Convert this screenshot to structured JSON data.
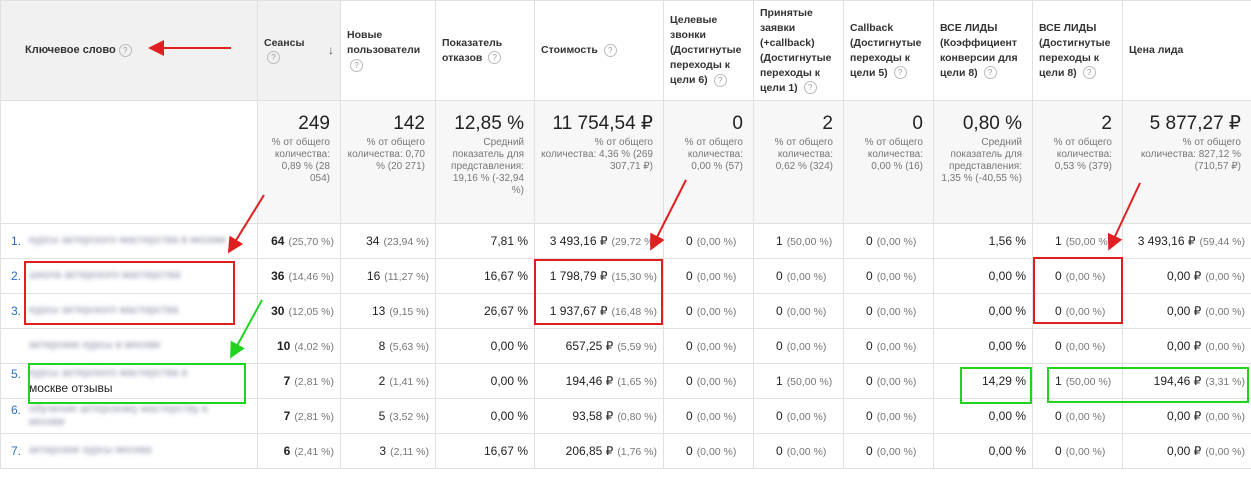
{
  "headers": {
    "keyword": "Ключевое слово",
    "sessions": "Сеансы",
    "new_users": "Новые пользователи",
    "bounce": "Показатель отказов",
    "cost": "Стоимость",
    "goal6": "Целевые звонки (Достигнутые переходы к цели 6)",
    "goal1": "Принятые заявки (+callback) (Достигнутые переходы к цели 1)",
    "goal5": "Callback (Достигнутые переходы к цели 5)",
    "conv8": "ВСЕ ЛИДЫ (Коэффициент конверсии для цели 8)",
    "goal8": "ВСЕ ЛИДЫ (Достигнутые переходы к цели 8)",
    "lead_price": "Цена лида",
    "help": "?",
    "sort_icon": "↓"
  },
  "totals": {
    "sessions": {
      "big": "249",
      "small": "% от общего количества: 0,89 % (28 054)"
    },
    "new_users": {
      "big": "142",
      "small": "% от общего количества: 0,70 % (20 271)"
    },
    "bounce": {
      "big": "12,85 %",
      "small": "Средний показатель для представления: 19,16 % (-32,94 %)"
    },
    "cost": {
      "big": "11 754,54 ₽",
      "small": "% от общего количества: 4,36 % (269 307,71 ₽)"
    },
    "goal6": {
      "big": "0",
      "small": "% от общего количества: 0,00 % (57)"
    },
    "goal1": {
      "big": "2",
      "small": "% от общего количества: 0,62 % (324)"
    },
    "goal5": {
      "big": "0",
      "small": "% от общего количества: 0,00 % (16)"
    },
    "conv8": {
      "big": "0,80 %",
      "small": "Средний показатель для представления: 1,35 % (-40,55 %)"
    },
    "goal8": {
      "big": "2",
      "small": "% от общего количества: 0,53 % (379)"
    },
    "lead_price": {
      "big": "5 877,27 ₽",
      "small": "% от общего количества: 827,12 % (710,57 ₽)"
    }
  },
  "rows": [
    {
      "idx": "1.",
      "kw": "курсы актерского мастерства в москве",
      "kw_tail": "",
      "s": "64",
      "sp": "(25,70 %)",
      "nu": "34",
      "nup": "(23,94 %)",
      "br": "7,81 %",
      "cost": "3 493,16 ₽",
      "costp": "(29,72 %)",
      "g6": "0",
      "g6p": "(0,00 %)",
      "g1": "1",
      "g1p": "(50,00 %)",
      "g5": "0",
      "g5p": "(0,00 %)",
      "cv": "1,56 %",
      "g8": "1",
      "g8p": "(50,00 %)",
      "lp": "3 493,16 ₽",
      "lpp": "(59,44 %)"
    },
    {
      "idx": "2.",
      "kw": "школа актерского мастерства",
      "kw_tail": "",
      "s": "36",
      "sp": "(14,46 %)",
      "nu": "16",
      "nup": "(11,27 %)",
      "br": "16,67 %",
      "cost": "1 798,79 ₽",
      "costp": "(15,30 %)",
      "g6": "0",
      "g6p": "(0,00 %)",
      "g1": "0",
      "g1p": "(0,00 %)",
      "g5": "0",
      "g5p": "(0,00 %)",
      "cv": "0,00 %",
      "g8": "0",
      "g8p": "(0,00 %)",
      "lp": "0,00 ₽",
      "lpp": "(0,00 %)"
    },
    {
      "idx": "3.",
      "kw": "курсы актерского мастерства",
      "kw_tail": "",
      "s": "30",
      "sp": "(12,05 %)",
      "nu": "13",
      "nup": "(9,15 %)",
      "br": "26,67 %",
      "cost": "1 937,67 ₽",
      "costp": "(16,48 %)",
      "g6": "0",
      "g6p": "(0,00 %)",
      "g1": "0",
      "g1p": "(0,00 %)",
      "g5": "0",
      "g5p": "(0,00 %)",
      "cv": "0,00 %",
      "g8": "0",
      "g8p": "(0,00 %)",
      "lp": "0,00 ₽",
      "lpp": "(0,00 %)"
    },
    {
      "idx": "",
      "kw": "актерские курсы в москве",
      "kw_tail": "",
      "s": "10",
      "sp": "(4,02 %)",
      "nu": "8",
      "nup": "(5,63 %)",
      "br": "0,00 %",
      "cost": "657,25 ₽",
      "costp": "(5,59 %)",
      "g6": "0",
      "g6p": "(0,00 %)",
      "g1": "0",
      "g1p": "(0,00 %)",
      "g5": "0",
      "g5p": "(0,00 %)",
      "cv": "0,00 %",
      "g8": "0",
      "g8p": "(0,00 %)",
      "lp": "0,00 ₽",
      "lpp": "(0,00 %)"
    },
    {
      "idx": "5.",
      "kw": "курсы актерского мастерства в",
      "kw_tail": "москве отзывы",
      "s": "7",
      "sp": "(2,81 %)",
      "nu": "2",
      "nup": "(1,41 %)",
      "br": "0,00 %",
      "cost": "194,46 ₽",
      "costp": "(1,65 %)",
      "g6": "0",
      "g6p": "(0,00 %)",
      "g1": "1",
      "g1p": "(50,00 %)",
      "g5": "0",
      "g5p": "(0,00 %)",
      "cv": "14,29 %",
      "g8": "1",
      "g8p": "(50,00 %)",
      "lp": "194,46 ₽",
      "lpp": "(3,31 %)"
    },
    {
      "idx": "6.",
      "kw": "обучение актерскому мастерству в москве",
      "kw_tail": "",
      "s": "7",
      "sp": "(2,81 %)",
      "nu": "5",
      "nup": "(3,52 %)",
      "br": "0,00 %",
      "cost": "93,58 ₽",
      "costp": "(0,80 %)",
      "g6": "0",
      "g6p": "(0,00 %)",
      "g1": "0",
      "g1p": "(0,00 %)",
      "g5": "0",
      "g5p": "(0,00 %)",
      "cv": "0,00 %",
      "g8": "0",
      "g8p": "(0,00 %)",
      "lp": "0,00 ₽",
      "lpp": "(0,00 %)"
    },
    {
      "idx": "7.",
      "kw": "актерские курсы москва",
      "kw_tail": "",
      "s": "6",
      "sp": "(2,41 %)",
      "nu": "3",
      "nup": "(2,11 %)",
      "br": "16,67 %",
      "cost": "206,85 ₽",
      "costp": "(1,76 %)",
      "g6": "0",
      "g6p": "(0,00 %)",
      "g1": "0",
      "g1p": "(0,00 %)",
      "g5": "0",
      "g5p": "(0,00 %)",
      "cv": "0,00 %",
      "g8": "0",
      "g8p": "(0,00 %)",
      "lp": "0,00 ₽",
      "lpp": "(0,00 %)"
    }
  ],
  "colors": {
    "red": "#e02020",
    "green": "#1fd31f"
  }
}
